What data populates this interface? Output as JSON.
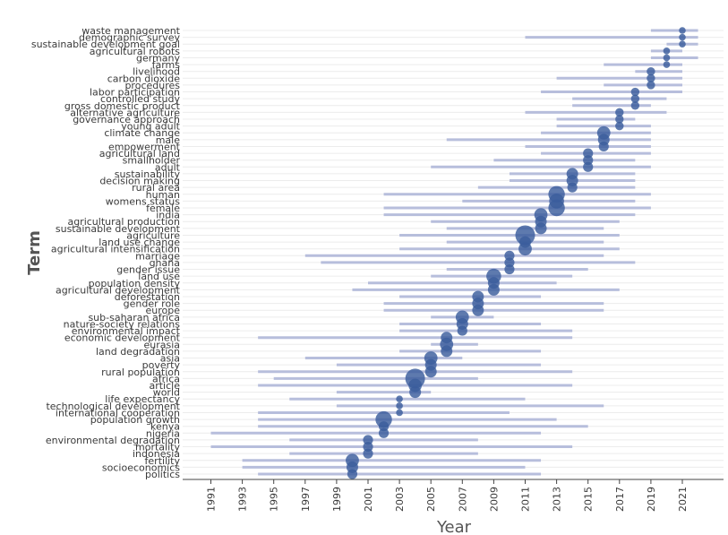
{
  "chart_data": {
    "type": "scatter",
    "xlabel": "Year",
    "ylabel": "Term",
    "x_ticks": [
      1991,
      1993,
      1995,
      1997,
      1999,
      2001,
      2003,
      2005,
      2007,
      2009,
      2011,
      2013,
      2015,
      2017,
      2019,
      2021
    ],
    "xlim": [
      1990,
      2024
    ],
    "colors": {
      "line": "#b7bedc",
      "bubble": "#3a5d9c",
      "grid": "#ececec"
    },
    "terms": [
      {
        "term": "waste management",
        "start": 2019,
        "end": 2022,
        "median": 2021,
        "size": 2
      },
      {
        "term": "demographic survey",
        "start": 2011,
        "end": 2022,
        "median": 2021,
        "size": 2
      },
      {
        "term": "sustainable development goal",
        "start": 2020,
        "end": 2022,
        "median": 2021,
        "size": 2
      },
      {
        "term": "agricultural robots",
        "start": 2019,
        "end": 2021,
        "median": 2020,
        "size": 2
      },
      {
        "term": "germany",
        "start": 2019,
        "end": 2022,
        "median": 2020,
        "size": 2
      },
      {
        "term": "farms",
        "start": 2016,
        "end": 2021,
        "median": 2020,
        "size": 2
      },
      {
        "term": "livelihood",
        "start": 2018,
        "end": 2021,
        "median": 2019,
        "size": 3
      },
      {
        "term": "carbon dioxide",
        "start": 2013,
        "end": 2021,
        "median": 2019,
        "size": 3
      },
      {
        "term": "procedures",
        "start": 2016,
        "end": 2021,
        "median": 2019,
        "size": 3
      },
      {
        "term": "labor participation",
        "start": 2012,
        "end": 2021,
        "median": 2018,
        "size": 3
      },
      {
        "term": "controlled study",
        "start": 2014,
        "end": 2020,
        "median": 2018,
        "size": 3
      },
      {
        "term": "gross domestic product",
        "start": 2014,
        "end": 2019,
        "median": 2018,
        "size": 3
      },
      {
        "term": "alternative agriculture",
        "start": 2011,
        "end": 2020,
        "median": 2017,
        "size": 3
      },
      {
        "term": "governance approach",
        "start": 2013,
        "end": 2018,
        "median": 2017,
        "size": 3
      },
      {
        "term": "young adult",
        "start": 2013,
        "end": 2019,
        "median": 2017,
        "size": 3
      },
      {
        "term": "climate change",
        "start": 2012,
        "end": 2019,
        "median": 2016,
        "size": 6
      },
      {
        "term": "male",
        "start": 2006,
        "end": 2019,
        "median": 2016,
        "size": 5
      },
      {
        "term": "empowerment",
        "start": 2011,
        "end": 2019,
        "median": 2016,
        "size": 4
      },
      {
        "term": "agricultural land",
        "start": 2012,
        "end": 2019,
        "median": 2015,
        "size": 4
      },
      {
        "term": "smallholder",
        "start": 2009,
        "end": 2018,
        "median": 2015,
        "size": 4
      },
      {
        "term": "adult",
        "start": 2005,
        "end": 2019,
        "median": 2015,
        "size": 4
      },
      {
        "term": "sustainability",
        "start": 2010,
        "end": 2018,
        "median": 2014,
        "size": 5
      },
      {
        "term": "decision making",
        "start": 2010,
        "end": 2018,
        "median": 2014,
        "size": 5
      },
      {
        "term": "rural area",
        "start": 2008,
        "end": 2018,
        "median": 2014,
        "size": 4
      },
      {
        "term": "human",
        "start": 2002,
        "end": 2019,
        "median": 2013,
        "size": 8
      },
      {
        "term": "womens status",
        "start": 2007,
        "end": 2018,
        "median": 2013,
        "size": 7
      },
      {
        "term": "female",
        "start": 2002,
        "end": 2019,
        "median": 2013,
        "size": 8
      },
      {
        "term": "india",
        "start": 2002,
        "end": 2018,
        "median": 2012,
        "size": 6
      },
      {
        "term": "agricultural production",
        "start": 2005,
        "end": 2017,
        "median": 2012,
        "size": 5
      },
      {
        "term": "sustainable development",
        "start": 2006,
        "end": 2016,
        "median": 2012,
        "size": 5
      },
      {
        "term": "agriculture",
        "start": 2003,
        "end": 2017,
        "median": 2011,
        "size": 10
      },
      {
        "term": "land use change",
        "start": 2006,
        "end": 2016,
        "median": 2011,
        "size": 5
      },
      {
        "term": "agricultural intensification",
        "start": 2003,
        "end": 2017,
        "median": 2011,
        "size": 6
      },
      {
        "term": "marriage",
        "start": 1997,
        "end": 2016,
        "median": 2010,
        "size": 4
      },
      {
        "term": "ghana",
        "start": 1998,
        "end": 2018,
        "median": 2010,
        "size": 4
      },
      {
        "term": "gender issue",
        "start": 2006,
        "end": 2015,
        "median": 2010,
        "size": 4
      },
      {
        "term": "land use",
        "start": 2005,
        "end": 2014,
        "median": 2009,
        "size": 7
      },
      {
        "term": "population density",
        "start": 2001,
        "end": 2013,
        "median": 2009,
        "size": 5
      },
      {
        "term": "agricultural development",
        "start": 2000,
        "end": 2017,
        "median": 2009,
        "size": 5
      },
      {
        "term": "deforestation",
        "start": 2003,
        "end": 2012,
        "median": 2008,
        "size": 5
      },
      {
        "term": "gender role",
        "start": 2002,
        "end": 2016,
        "median": 2008,
        "size": 5
      },
      {
        "term": "europe",
        "start": 2002,
        "end": 2016,
        "median": 2008,
        "size": 5
      },
      {
        "term": "sub-saharan africa",
        "start": 2005,
        "end": 2009,
        "median": 2007,
        "size": 6
      },
      {
        "term": "nature-society relations",
        "start": 2003,
        "end": 2012,
        "median": 2007,
        "size": 5
      },
      {
        "term": "environmental impact",
        "start": 2003,
        "end": 2014,
        "median": 2007,
        "size": 4
      },
      {
        "term": "economic development",
        "start": 1994,
        "end": 2014,
        "median": 2006,
        "size": 5
      },
      {
        "term": "eurasia",
        "start": 2005,
        "end": 2008,
        "median": 2006,
        "size": 6
      },
      {
        "term": "land degradation",
        "start": 2003,
        "end": 2012,
        "median": 2006,
        "size": 5
      },
      {
        "term": "asia",
        "start": 1997,
        "end": 2007,
        "median": 2005,
        "size": 6
      },
      {
        "term": "poverty",
        "start": 1999,
        "end": 2012,
        "median": 2005,
        "size": 5
      },
      {
        "term": "rural population",
        "start": 1994,
        "end": 2014,
        "median": 2005,
        "size": 5
      },
      {
        "term": "africa",
        "start": 1995,
        "end": 2008,
        "median": 2004,
        "size": 10
      },
      {
        "term": "article",
        "start": 1994,
        "end": 2014,
        "median": 2004,
        "size": 6
      },
      {
        "term": "world",
        "start": 1999,
        "end": 2005,
        "median": 2004,
        "size": 5
      },
      {
        "term": "life expectancy",
        "start": 1996,
        "end": 2011,
        "median": 2003,
        "size": 2
      },
      {
        "term": "technological development",
        "start": 1999,
        "end": 2016,
        "median": 2003,
        "size": 2
      },
      {
        "term": "international cooperation",
        "start": 1994,
        "end": 2010,
        "median": 2003,
        "size": 2
      },
      {
        "term": "population growth",
        "start": 1994,
        "end": 2013,
        "median": 2002,
        "size": 8
      },
      {
        "term": "kenya",
        "start": 1994,
        "end": 2015,
        "median": 2002,
        "size": 4
      },
      {
        "term": "nigeria",
        "start": 1991,
        "end": 2012,
        "median": 2002,
        "size": 4
      },
      {
        "term": "environmental degradation",
        "start": 1996,
        "end": 2008,
        "median": 2001,
        "size": 4
      },
      {
        "term": "mortality",
        "start": 1991,
        "end": 2014,
        "median": 2001,
        "size": 4
      },
      {
        "term": "indonesia",
        "start": 1996,
        "end": 2008,
        "median": 2001,
        "size": 4
      },
      {
        "term": "fertility",
        "start": 1993,
        "end": 2012,
        "median": 2000,
        "size": 6
      },
      {
        "term": "socioeconomics",
        "start": 1993,
        "end": 2011,
        "median": 2000,
        "size": 5
      },
      {
        "term": "politics",
        "start": 1994,
        "end": 2012,
        "median": 2000,
        "size": 4
      }
    ]
  }
}
